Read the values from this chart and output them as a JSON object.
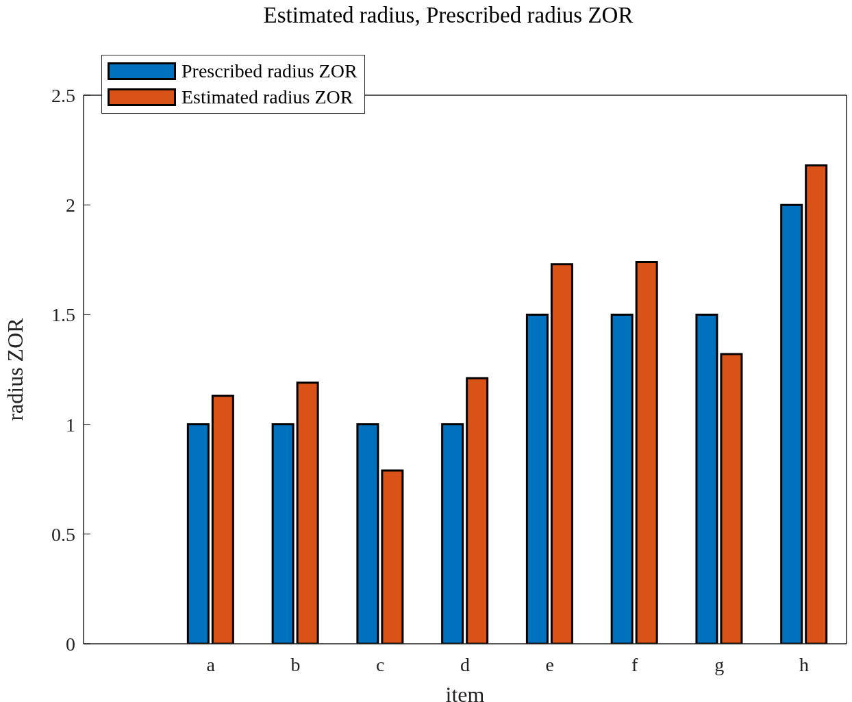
{
  "chart_data": {
    "type": "bar",
    "title": "Estimated radius, Prescribed radius ZOR",
    "xlabel": "item",
    "ylabel": "radius ZOR",
    "categories": [
      "a",
      "b",
      "c",
      "d",
      "e",
      "f",
      "g",
      "h"
    ],
    "series": [
      {
        "name": "Prescribed radius ZOR",
        "color": "#0072bd",
        "values": [
          1,
          1,
          1,
          1,
          1.5,
          1.5,
          1.5,
          2
        ]
      },
      {
        "name": "Estimated radius ZOR",
        "color": "#d95319",
        "values": [
          1.13,
          1.19,
          0.79,
          1.21,
          1.73,
          1.74,
          1.32,
          2.18
        ]
      }
    ],
    "ylim": [
      0,
      2.5
    ],
    "yticks": [
      0,
      0.5,
      1,
      1.5,
      2,
      2.5
    ],
    "grid": false,
    "legend": "top left"
  }
}
